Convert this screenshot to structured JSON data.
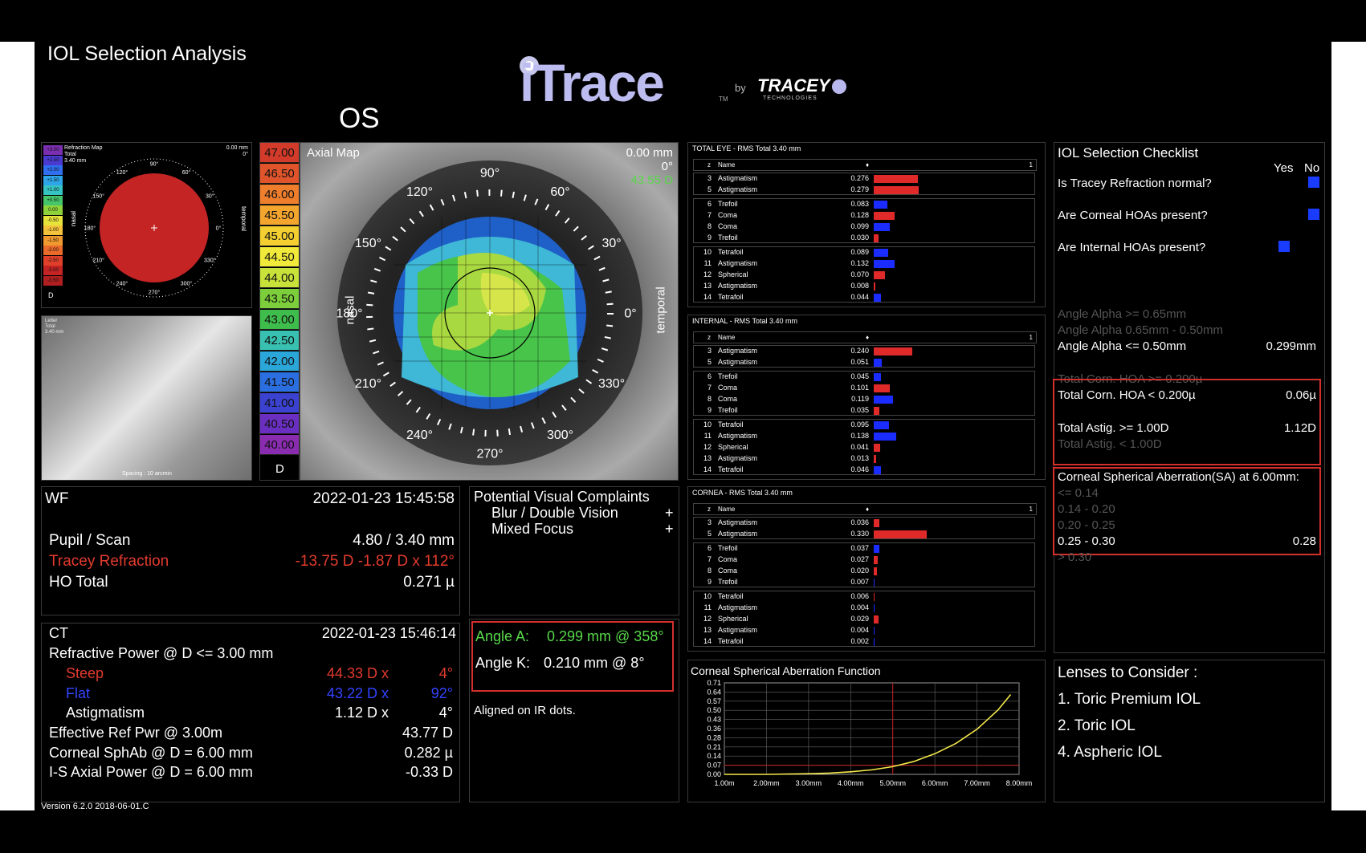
{
  "header": {
    "title": "IOL Selection Analysis",
    "brand": "iTrace",
    "brand_tm": "TM",
    "by": "by",
    "partner": "TRACEY",
    "partner_sub": "TECHNOLOGIES",
    "eye": "OS",
    "version": "Version 6.2.0 2018-06-01.C"
  },
  "refraction_map": {
    "title": "Refraction Map",
    "sub1": "Total",
    "sub2": "3.40 mm",
    "dist": "0.00 mm",
    "deg": "0°",
    "nasal": "nasal",
    "temporal": "temporal",
    "unit": "D",
    "scale": [
      "+3.00",
      "+2.50",
      "+2.00",
      "+1.50",
      "+1.00",
      "+0.50",
      "0.00",
      "-0.50",
      "-1.00",
      "-1.50",
      "-2.00",
      "-2.50",
      "-3.00",
      "-3.50"
    ],
    "scale_colors": [
      "#7a2fb0",
      "#4a3ad0",
      "#2f6ff0",
      "#2ea5e8",
      "#36c4c2",
      "#45c66a",
      "#8fd33a",
      "#e6e33a",
      "#f4c23a",
      "#f0992e",
      "#e96a2a",
      "#e0402a",
      "#c42424",
      "#b01f1f"
    ],
    "angles": [
      "90°",
      "60°",
      "30°",
      "0°",
      "330°",
      "300°",
      "270°",
      "240°",
      "210°",
      "180°",
      "150°",
      "120°"
    ]
  },
  "letter_panel": {
    "line1": "Letter",
    "line2": "Total",
    "line3": "3.40 mm",
    "spacing": "Spacing : 10 arcmin"
  },
  "axial_map": {
    "title": "Axial Map",
    "dist": "0.00 mm",
    "deg": "0°",
    "value": "43.55 D",
    "nasal": "nasal",
    "temporal": "temporal",
    "unit": "D",
    "angles": [
      "90°",
      "60°",
      "30°",
      "0°",
      "330°",
      "300°",
      "270°",
      "240°",
      "210°",
      "180°",
      "150°",
      "120°"
    ],
    "scale": [
      "47.00",
      "46.50",
      "46.00",
      "45.50",
      "45.00",
      "44.50",
      "44.00",
      "43.50",
      "43.00",
      "42.50",
      "42.00",
      "41.50",
      "41.00",
      "40.50",
      "40.00"
    ],
    "scale_colors": [
      "#d23a2a",
      "#e0542c",
      "#ee7e2c",
      "#f4a52e",
      "#f3cf30",
      "#f1ea3a",
      "#c8e23a",
      "#7cce3a",
      "#3fbd4c",
      "#38c0b0",
      "#2aa6d8",
      "#2b6ee0",
      "#3b42d0",
      "#6a2fc0",
      "#8a2cb0"
    ]
  },
  "zernike": {
    "header_name": "Name",
    "header_sort": "♦",
    "header_one": "1",
    "col_z": "z",
    "sections": [
      {
        "title": "TOTAL EYE  - RMS Total   3.40 mm",
        "rows": [
          {
            "z": "3",
            "name": "Astigmatism",
            "val": "0.276",
            "bar": 0.276,
            "color": "#e02a2a"
          },
          {
            "z": "5",
            "name": "Astigmatism",
            "val": "0.279",
            "bar": 0.279,
            "color": "#e02a2a"
          },
          {
            "z": "6",
            "name": "Trefoil",
            "val": "0.083",
            "bar": 0.083,
            "color": "#1a2cff"
          },
          {
            "z": "7",
            "name": "Coma",
            "val": "0.128",
            "bar": 0.128,
            "color": "#e02a2a"
          },
          {
            "z": "8",
            "name": "Coma",
            "val": "0.099",
            "bar": 0.099,
            "color": "#1a2cff"
          },
          {
            "z": "9",
            "name": "Trefoil",
            "val": "0.030",
            "bar": 0.03,
            "color": "#e02a2a"
          },
          {
            "z": "10",
            "name": "Tetrafoil",
            "val": "0.089",
            "bar": 0.089,
            "color": "#1a2cff"
          },
          {
            "z": "11",
            "name": "Astigmatism",
            "val": "0.132",
            "bar": 0.132,
            "color": "#1a2cff"
          },
          {
            "z": "12",
            "name": "Spherical",
            "val": "0.070",
            "bar": 0.07,
            "color": "#e02a2a"
          },
          {
            "z": "13",
            "name": "Astigmatism",
            "val": "0.008",
            "bar": 0.008,
            "color": "#e02a2a"
          },
          {
            "z": "14",
            "name": "Tetrafoil",
            "val": "0.044",
            "bar": 0.044,
            "color": "#1a2cff"
          }
        ]
      },
      {
        "title": "INTERNAL  - RMS Total   3.40 mm",
        "rows": [
          {
            "z": "3",
            "name": "Astigmatism",
            "val": "0.240",
            "bar": 0.24,
            "color": "#e02a2a"
          },
          {
            "z": "5",
            "name": "Astigmatism",
            "val": "0.051",
            "bar": 0.051,
            "color": "#1a2cff"
          },
          {
            "z": "6",
            "name": "Trefoil",
            "val": "0.045",
            "bar": 0.045,
            "color": "#1a2cff"
          },
          {
            "z": "7",
            "name": "Coma",
            "val": "0.101",
            "bar": 0.101,
            "color": "#e02a2a"
          },
          {
            "z": "8",
            "name": "Coma",
            "val": "0.119",
            "bar": 0.119,
            "color": "#1a2cff"
          },
          {
            "z": "9",
            "name": "Trefoil",
            "val": "0.035",
            "bar": 0.035,
            "color": "#e02a2a"
          },
          {
            "z": "10",
            "name": "Tetrafoil",
            "val": "0.095",
            "bar": 0.095,
            "color": "#1a2cff"
          },
          {
            "z": "11",
            "name": "Astigmatism",
            "val": "0.138",
            "bar": 0.138,
            "color": "#1a2cff"
          },
          {
            "z": "12",
            "name": "Spherical",
            "val": "0.041",
            "bar": 0.041,
            "color": "#e02a2a"
          },
          {
            "z": "13",
            "name": "Astigmatism",
            "val": "0.013",
            "bar": 0.013,
            "color": "#e02a2a"
          },
          {
            "z": "14",
            "name": "Tetrafoil",
            "val": "0.046",
            "bar": 0.046,
            "color": "#1a2cff"
          }
        ]
      },
      {
        "title": "CORNEA  - RMS Total   3.40 mm",
        "rows": [
          {
            "z": "3",
            "name": "Astigmatism",
            "val": "0.036",
            "bar": 0.036,
            "color": "#e02a2a"
          },
          {
            "z": "5",
            "name": "Astigmatism",
            "val": "0.330",
            "bar": 0.33,
            "color": "#e02a2a"
          },
          {
            "z": "6",
            "name": "Trefoil",
            "val": "0.037",
            "bar": 0.037,
            "color": "#1a2cff"
          },
          {
            "z": "7",
            "name": "Coma",
            "val": "0.027",
            "bar": 0.027,
            "color": "#e02a2a"
          },
          {
            "z": "8",
            "name": "Coma",
            "val": "0.020",
            "bar": 0.02,
            "color": "#e02a2a"
          },
          {
            "z": "9",
            "name": "Trefoil",
            "val": "0.007",
            "bar": 0.007,
            "color": "#1a2cff"
          },
          {
            "z": "10",
            "name": "Tetrafoil",
            "val": "0.006",
            "bar": 0.006,
            "color": "#e02a2a"
          },
          {
            "z": "11",
            "name": "Astigmatism",
            "val": "0.004",
            "bar": 0.004,
            "color": "#1a2cff"
          },
          {
            "z": "12",
            "name": "Spherical",
            "val": "0.029",
            "bar": 0.029,
            "color": "#e02a2a"
          },
          {
            "z": "13",
            "name": "Astigmatism",
            "val": "0.004",
            "bar": 0.004,
            "color": "#1a2cff"
          },
          {
            "z": "14",
            "name": "Tetrafoil",
            "val": "0.002",
            "bar": 0.002,
            "color": "#1a2cff"
          }
        ]
      }
    ]
  },
  "wf": {
    "label": "WF",
    "datetime": "2022-01-23  15:45:58",
    "pupil_label": "Pupil / Scan",
    "pupil_value": "4.80 / 3.40 mm",
    "refraction_label": "Tracey Refraction",
    "refraction_value": "-13.75 D -1.87 D x 112°",
    "ho_label": "HO Total",
    "ho_value": "0.271 µ"
  },
  "complaints": {
    "title": "Potential Visual Complaints",
    "items": [
      {
        "label": "Blur / Double Vision",
        "mark": "+"
      },
      {
        "label": "Mixed Focus",
        "mark": "+"
      }
    ]
  },
  "ct": {
    "label": "CT",
    "datetime": "2022-01-23  15:46:14",
    "refractive_power": "Refractive Power @ D <= 3.00 mm",
    "steep_label": "Steep",
    "steep_value": "44.33 D x",
    "steep_axis": "4°",
    "flat_label": "Flat",
    "flat_value": "43.22 D x",
    "flat_axis": "92°",
    "astig_label": "Astigmatism",
    "astig_value": "1.12 D x",
    "astig_axis": "4°",
    "eff_label": "Effective Ref Pwr @ 3.00m",
    "eff_value": "43.77 D",
    "sphab_label": "Corneal SphAb @ D = 6.00 mm",
    "sphab_value": "0.282 µ",
    "is_label": "I-S Axial Power @ D = 6.00 mm",
    "is_value": "-0.33 D"
  },
  "angles": {
    "a_label": "Angle A:",
    "a_value": "0.299 mm @ 358°",
    "k_label": "Angle K:",
    "k_value": "0.210 mm @ 8°",
    "aligned": "Aligned on IR dots."
  },
  "checklist": {
    "title": "IOL Selection Checklist",
    "yes": "Yes",
    "no": "No",
    "questions": [
      {
        "label": "Is Tracey Refraction normal?",
        "answer": "no"
      },
      {
        "label": "Are Corneal HOAs present?",
        "answer": "no"
      },
      {
        "label": "Are Internal HOAs present?",
        "answer": "yes"
      }
    ],
    "alpha1": "Angle Alpha >= 0.65mm",
    "alpha2": "Angle Alpha  0.65mm - 0.50mm",
    "alpha3": "Angle Alpha <= 0.50mm",
    "alpha3_value": "0.299mm",
    "hoa1": "Total Corn. HOA >= 0.200µ",
    "hoa2": "Total Corn. HOA < 0.200µ",
    "hoa2_value": "0.06µ",
    "astig1": "Total Astig. >= 1.00D",
    "astig1_value": "1.12D",
    "astig2": "Total Astig. < 1.00D",
    "sa_title": "Corneal Spherical Aberration(SA) at 6.00mm:",
    "sa1": "<= 0.14",
    "sa2": "0.14 - 0.20",
    "sa3": "0.20 - 0.25",
    "sa4": "0.25 - 0.30",
    "sa4_value": "0.28",
    "sa5": "> 0.30"
  },
  "lenses": {
    "title": "Lenses to Consider :",
    "items": [
      "1. Toric Premium IOL",
      "2. Toric IOL",
      "4. Aspheric IOL"
    ]
  },
  "chart_data": {
    "type": "line",
    "title": "Corneal Spherical Aberration Function",
    "xlabel": "",
    "ylabel": "",
    "x_ticks": [
      "1.00m",
      "2.00mm",
      "3.00mm",
      "4.00mm",
      "5.00mm",
      "6.00mm",
      "7.00mm",
      "8.00mm"
    ],
    "y_ticks": [
      "0.71",
      "0.64",
      "0.57",
      "0.50",
      "0.43",
      "0.36",
      "0.28",
      "0.21",
      "0.14",
      "0.07",
      "0.00"
    ],
    "xlim": [
      1,
      8
    ],
    "ylim": [
      0,
      0.71
    ],
    "grid": true,
    "series": [
      {
        "color": "#f5e84a",
        "x": [
          1,
          2,
          3,
          3.5,
          4,
          4.5,
          5,
          5.5,
          6,
          6.5,
          7,
          7.5,
          7.8
        ],
        "y": [
          0,
          0,
          0.005,
          0.01,
          0.02,
          0.035,
          0.06,
          0.1,
          0.16,
          0.24,
          0.35,
          0.5,
          0.62
        ]
      }
    ],
    "marker_x": 5.0,
    "marker_y": 0.07,
    "marker_color": "#c81e1e"
  }
}
